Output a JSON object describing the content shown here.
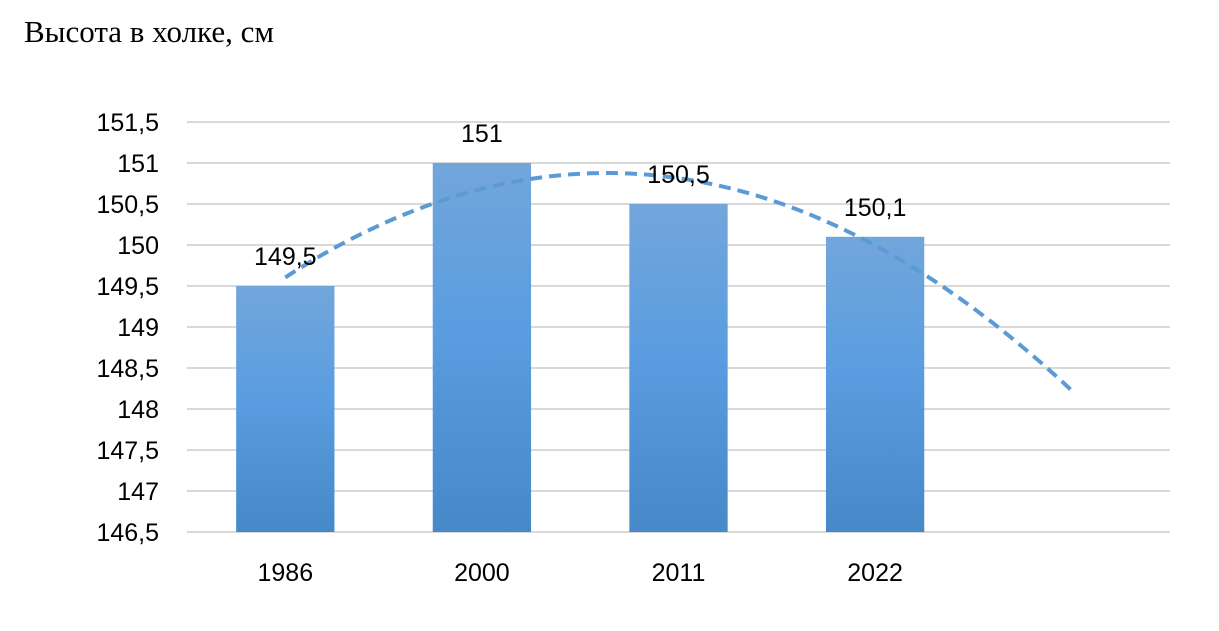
{
  "chart_data": {
    "type": "bar",
    "title": "Высота в холке, см",
    "categories": [
      "1986",
      "2000",
      "2011",
      "2022"
    ],
    "values": [
      149.5,
      151,
      150.5,
      150.1
    ],
    "data_labels": [
      "149,5",
      "151",
      "150,5",
      "150,1"
    ],
    "ylim": [
      146.5,
      151.5
    ],
    "y_ticks": [
      146.5,
      147,
      147.5,
      148,
      148.5,
      149,
      149.5,
      150,
      150.5,
      151,
      151.5
    ],
    "y_tick_labels": [
      "146,5",
      "147",
      "147,5",
      "148",
      "148,5",
      "149",
      "149,5",
      "150",
      "150,5",
      "151",
      "151,5"
    ],
    "grid": true,
    "trendline": {
      "type": "polynomial",
      "style": "dashed",
      "extends_forward_periods": 1
    },
    "colors": {
      "bar_top": "#72a6db",
      "bar_bottom": "#4589c9",
      "trendline": "#5b9bd5",
      "grid": "#d9d9d9"
    }
  }
}
